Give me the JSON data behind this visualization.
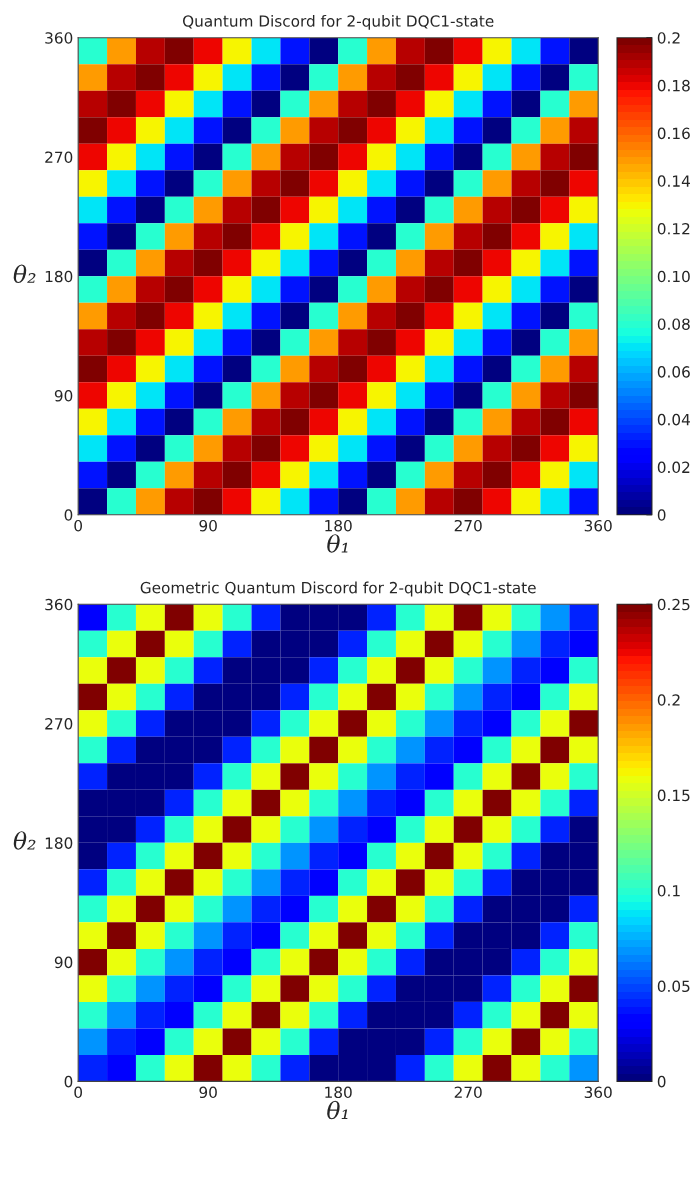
{
  "chart_data": [
    {
      "type": "heatmap",
      "title": "Quantum Discord for 2-qubit DQC1-state",
      "xlabel": "θ₁",
      "ylabel": "θ₂",
      "xlim": [
        0,
        360
      ],
      "xticks": [
        0,
        90,
        180,
        270,
        360
      ],
      "ylim": [
        0,
        360
      ],
      "yticks": [
        0,
        90,
        180,
        270,
        360
      ],
      "clim": [
        0,
        0.2
      ],
      "cticks": [
        0,
        0.02,
        0.04,
        0.06,
        0.08,
        {
          "value": 0.1,
          "label": "0.10"
        },
        0.12,
        0.14,
        0.16,
        0.18,
        0.2
      ],
      "cells": [
        [
          0.08,
          0.15,
          0.19,
          0.2,
          0.18,
          0.13,
          0.07,
          0.03,
          0,
          0.08,
          0.15,
          0.19,
          0.2,
          0.18,
          0.13,
          0.07,
          0.03,
          0
        ],
        [
          0.15,
          0.19,
          0.2,
          0.18,
          0.13,
          0.07,
          0.03,
          0,
          0.08,
          0.15,
          0.19,
          0.2,
          0.18,
          0.13,
          0.07,
          0.03,
          0,
          0.08
        ],
        [
          0.19,
          0.2,
          0.18,
          0.13,
          0.07,
          0.03,
          0,
          0.08,
          0.15,
          0.19,
          0.2,
          0.18,
          0.13,
          0.07,
          0.03,
          0,
          0.08,
          0.15
        ],
        [
          0.2,
          0.18,
          0.13,
          0.07,
          0.03,
          0,
          0.08,
          0.15,
          0.19,
          0.2,
          0.18,
          0.13,
          0.07,
          0.03,
          0,
          0.08,
          0.15,
          0.19
        ],
        [
          0.18,
          0.13,
          0.07,
          0.03,
          0,
          0.08,
          0.15,
          0.19,
          0.2,
          0.18,
          0.13,
          0.07,
          0.03,
          0,
          0.08,
          0.15,
          0.19,
          0.2
        ],
        [
          0.13,
          0.07,
          0.03,
          0,
          0.08,
          0.15,
          0.19,
          0.2,
          0.18,
          0.13,
          0.07,
          0.03,
          0,
          0.08,
          0.15,
          0.19,
          0.2,
          0.18
        ],
        [
          0.07,
          0.03,
          0,
          0.08,
          0.15,
          0.19,
          0.2,
          0.18,
          0.13,
          0.07,
          0.03,
          0,
          0.08,
          0.15,
          0.19,
          0.2,
          0.18,
          0.13
        ],
        [
          0.03,
          0,
          0.08,
          0.15,
          0.19,
          0.2,
          0.18,
          0.13,
          0.07,
          0.03,
          0,
          0.08,
          0.15,
          0.19,
          0.2,
          0.18,
          0.13,
          0.07
        ],
        [
          0,
          0.08,
          0.15,
          0.19,
          0.2,
          0.18,
          0.13,
          0.07,
          0.03,
          0,
          0.08,
          0.15,
          0.19,
          0.2,
          0.18,
          0.13,
          0.07,
          0.03
        ],
        [
          0.08,
          0.15,
          0.19,
          0.2,
          0.18,
          0.13,
          0.07,
          0.03,
          0,
          0.08,
          0.15,
          0.19,
          0.2,
          0.18,
          0.13,
          0.07,
          0.03,
          0
        ],
        [
          0.15,
          0.19,
          0.2,
          0.18,
          0.13,
          0.07,
          0.03,
          0,
          0.08,
          0.15,
          0.19,
          0.2,
          0.18,
          0.13,
          0.07,
          0.03,
          0,
          0.08
        ],
        [
          0.19,
          0.2,
          0.18,
          0.13,
          0.07,
          0.03,
          0,
          0.08,
          0.15,
          0.19,
          0.2,
          0.18,
          0.13,
          0.07,
          0.03,
          0,
          0.08,
          0.15
        ],
        [
          0.2,
          0.18,
          0.13,
          0.07,
          0.03,
          0,
          0.08,
          0.15,
          0.19,
          0.2,
          0.18,
          0.13,
          0.07,
          0.03,
          0,
          0.08,
          0.15,
          0.19
        ],
        [
          0.18,
          0.13,
          0.07,
          0.03,
          0,
          0.08,
          0.15,
          0.19,
          0.2,
          0.18,
          0.13,
          0.07,
          0.03,
          0,
          0.08,
          0.15,
          0.19,
          0.2
        ],
        [
          0.13,
          0.07,
          0.03,
          0,
          0.08,
          0.15,
          0.19,
          0.2,
          0.18,
          0.13,
          0.07,
          0.03,
          0,
          0.08,
          0.15,
          0.19,
          0.2,
          0.18
        ],
        [
          0.07,
          0.03,
          0,
          0.08,
          0.15,
          0.19,
          0.2,
          0.18,
          0.13,
          0.07,
          0.03,
          0,
          0.08,
          0.15,
          0.19,
          0.2,
          0.18,
          0.13
        ],
        [
          0.03,
          0,
          0.08,
          0.15,
          0.19,
          0.2,
          0.18,
          0.13,
          0.07,
          0.03,
          0,
          0.08,
          0.15,
          0.19,
          0.2,
          0.18,
          0.13,
          0.07
        ],
        [
          0,
          0.08,
          0.15,
          0.19,
          0.2,
          0.18,
          0.13,
          0.07,
          0.03,
          0,
          0.08,
          0.15,
          0.19,
          0.2,
          0.18,
          0.13,
          0.07,
          0.03
        ]
      ]
    },
    {
      "type": "heatmap",
      "title": "Geometric Quantum Discord for 2-qubit DQC1-state",
      "xlabel": "θ₁",
      "ylabel": "θ₂",
      "xlim": [
        0,
        360
      ],
      "xticks": [
        0,
        90,
        180,
        270,
        360
      ],
      "ylim": [
        0,
        360
      ],
      "yticks": [
        0,
        90,
        180,
        270,
        360
      ],
      "clim": [
        0,
        0.25
      ],
      "cticks": [
        0,
        0.05,
        0.1,
        0.15,
        0.2,
        0.25
      ],
      "cells": [
        [
          0.03,
          0.1,
          0.16,
          0.25,
          0.16,
          0.1,
          0.04,
          0,
          0,
          0,
          0.04,
          0.1,
          0.16,
          0.25,
          0.16,
          0.1,
          0.07,
          0.04
        ],
        [
          0.1,
          0.16,
          0.25,
          0.16,
          0.1,
          0.04,
          0,
          0,
          0,
          0.04,
          0.1,
          0.16,
          0.25,
          0.16,
          0.1,
          0.07,
          0.04,
          0.03
        ],
        [
          0.16,
          0.25,
          0.16,
          0.1,
          0.04,
          0,
          0,
          0,
          0.04,
          0.1,
          0.16,
          0.25,
          0.16,
          0.1,
          0.07,
          0.04,
          0.03,
          0.1
        ],
        [
          0.25,
          0.16,
          0.1,
          0.04,
          0,
          0,
          0,
          0.04,
          0.1,
          0.16,
          0.25,
          0.16,
          0.1,
          0.07,
          0.04,
          0.03,
          0.1,
          0.16
        ],
        [
          0.16,
          0.1,
          0.04,
          0,
          0,
          0,
          0.04,
          0.1,
          0.16,
          0.25,
          0.16,
          0.1,
          0.07,
          0.04,
          0.03,
          0.1,
          0.16,
          0.25
        ],
        [
          0.1,
          0.04,
          0,
          0,
          0,
          0.04,
          0.1,
          0.16,
          0.25,
          0.16,
          0.1,
          0.07,
          0.04,
          0.03,
          0.1,
          0.16,
          0.25,
          0.16
        ],
        [
          0.04,
          0,
          0,
          0,
          0.04,
          0.1,
          0.16,
          0.25,
          0.16,
          0.1,
          0.07,
          0.04,
          0.03,
          0.1,
          0.16,
          0.25,
          0.16,
          0.1
        ],
        [
          0,
          0,
          0,
          0.04,
          0.1,
          0.16,
          0.25,
          0.16,
          0.1,
          0.07,
          0.04,
          0.03,
          0.1,
          0.16,
          0.25,
          0.16,
          0.1,
          0.04
        ],
        [
          0,
          0,
          0.04,
          0.1,
          0.16,
          0.25,
          0.16,
          0.1,
          0.07,
          0.04,
          0.03,
          0.1,
          0.16,
          0.25,
          0.16,
          0.1,
          0.04,
          0
        ],
        [
          0,
          0.04,
          0.1,
          0.16,
          0.25,
          0.16,
          0.1,
          0.07,
          0.04,
          0.03,
          0.1,
          0.16,
          0.25,
          0.16,
          0.1,
          0.04,
          0,
          0
        ],
        [
          0.04,
          0.1,
          0.16,
          0.25,
          0.16,
          0.1,
          0.07,
          0.04,
          0.03,
          0.1,
          0.16,
          0.25,
          0.16,
          0.1,
          0.04,
          0,
          0,
          0
        ],
        [
          0.1,
          0.16,
          0.25,
          0.16,
          0.1,
          0.07,
          0.04,
          0.03,
          0.1,
          0.16,
          0.25,
          0.16,
          0.1,
          0.04,
          0,
          0,
          0,
          0.04
        ],
        [
          0.16,
          0.25,
          0.16,
          0.1,
          0.07,
          0.04,
          0.03,
          0.1,
          0.16,
          0.25,
          0.16,
          0.1,
          0.04,
          0,
          0,
          0,
          0.04,
          0.1
        ],
        [
          0.25,
          0.16,
          0.1,
          0.07,
          0.04,
          0.03,
          0.1,
          0.16,
          0.25,
          0.16,
          0.1,
          0.04,
          0,
          0,
          0,
          0.04,
          0.1,
          0.16
        ],
        [
          0.16,
          0.1,
          0.07,
          0.04,
          0.03,
          0.1,
          0.16,
          0.25,
          0.16,
          0.1,
          0.04,
          0,
          0,
          0,
          0.04,
          0.1,
          0.16,
          0.25
        ],
        [
          0.1,
          0.07,
          0.04,
          0.03,
          0.1,
          0.16,
          0.25,
          0.16,
          0.1,
          0.04,
          0,
          0,
          0,
          0.04,
          0.1,
          0.16,
          0.25,
          0.16
        ],
        [
          0.07,
          0.04,
          0.03,
          0.1,
          0.16,
          0.25,
          0.16,
          0.1,
          0.04,
          0,
          0,
          0,
          0.04,
          0.1,
          0.16,
          0.25,
          0.16,
          0.1
        ],
        [
          0.04,
          0.03,
          0.1,
          0.16,
          0.25,
          0.16,
          0.1,
          0.04,
          0,
          0,
          0,
          0.04,
          0.1,
          0.16,
          0.25,
          0.16,
          0.1,
          0.07
        ]
      ]
    }
  ]
}
